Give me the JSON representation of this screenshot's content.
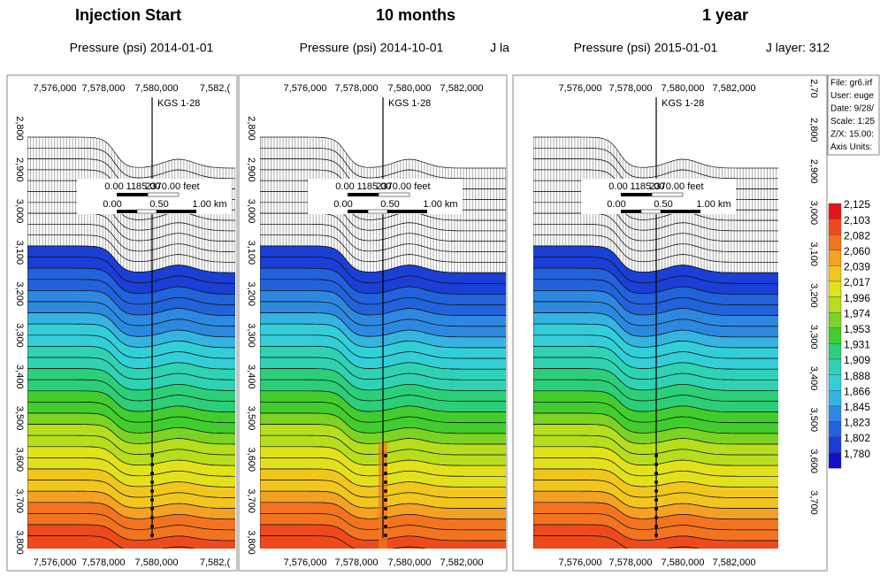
{
  "panels": [
    {
      "heading": "Injection Start",
      "subtitle": "Pressure (psi) 2014-01-01",
      "well": "KGS 1-28",
      "x_top": [
        "7,576,000",
        "7,578,000",
        "7,580,000",
        "7,582,("
      ],
      "x_bottom": [
        "7,576,000",
        "7,578,000",
        "7,580,000",
        "7,582,("
      ],
      "y_axis": [
        "2,800",
        "2,900",
        "3,000",
        "3,100",
        "3,200",
        "3,300",
        "3,400",
        "3,500",
        "3,600",
        "3,700",
        "3,800"
      ]
    },
    {
      "heading": "10 months",
      "subtitle": "Pressure (psi) 2014-10-01",
      "layer": "J la",
      "well": "KGS 1-28",
      "x_top": [
        "7,576,000",
        "7,578,000",
        "7,580,000",
        "7,582,000"
      ],
      "x_bottom": [
        "7,576,000",
        "7,578,000",
        "7,580,000",
        "7,582,000"
      ],
      "y_axis": [
        "2,800",
        "2,900",
        "3,000",
        "3,100",
        "3,200",
        "3,300",
        "3,400",
        "3,500",
        "3,600",
        "3,700",
        "3,800"
      ]
    },
    {
      "heading": "1 year",
      "subtitle": "Pressure (psi) 2015-01-01",
      "layer": "J layer: 312",
      "well": "KGS 1-28",
      "x_top": [
        "7,576,000",
        "7,578,000",
        "7,580,000",
        "7,582,000"
      ],
      "x_bottom": [
        "7,576,000",
        "7,578,000",
        "7,580,000",
        "7,582,000"
      ],
      "y_axis": [
        "2,70",
        "2,800",
        "2,900",
        "3,000",
        "3,100",
        "3,200",
        "3,300",
        "3,400",
        "3,500",
        "3,600",
        "3,700"
      ]
    }
  ],
  "scale_bar": {
    "feet": [
      "0.00",
      "1185.00",
      "2370.00 feet"
    ],
    "km": [
      "0.00",
      "0.50",
      "1.00 km"
    ]
  },
  "info_box": [
    "File: gr6.irf",
    "User: euge",
    "Date: 9/28/",
    "Scale: 1:25",
    "Z/X: 15.00:",
    "Axis Units:"
  ],
  "legend": [
    "2,125",
    "2,103",
    "2,082",
    "2,060",
    "2,039",
    "2,017",
    "1,996",
    "1,974",
    "1,953",
    "1,931",
    "1,909",
    "1,888",
    "1,866",
    "1,845",
    "1,823",
    "1,802",
    "1,780"
  ]
}
